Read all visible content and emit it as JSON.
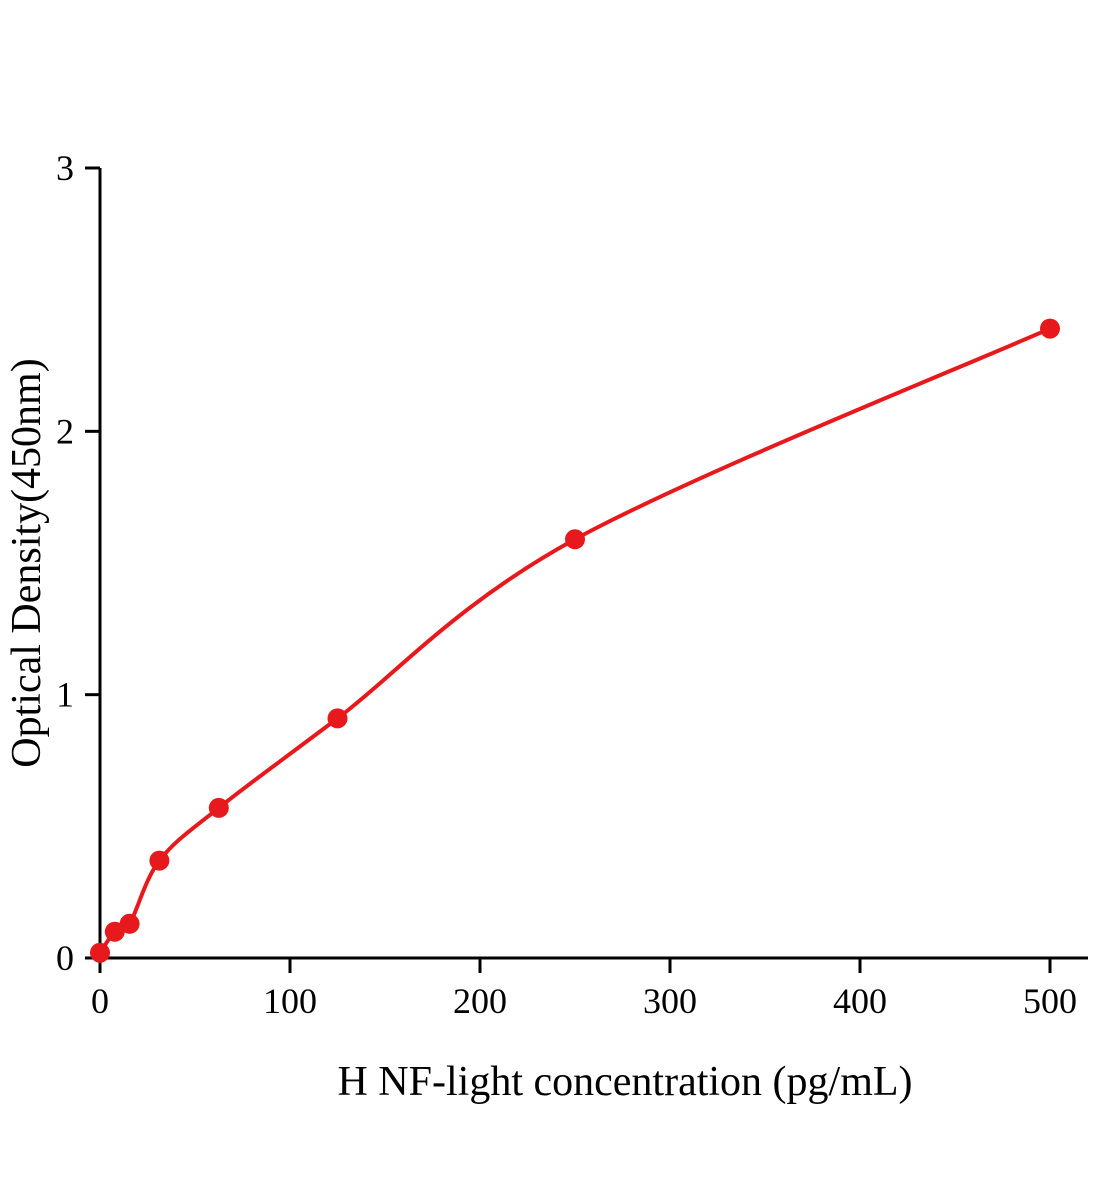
{
  "chart_data": {
    "type": "scatter",
    "title": "",
    "xlabel": "H NF-light concentration (pg/mL)",
    "ylabel": "Optical Density(450nm)",
    "x": [
      0,
      7.8,
      15.6,
      31.25,
      62.5,
      125,
      250,
      500
    ],
    "y": [
      0.02,
      0.1,
      0.13,
      0.37,
      0.57,
      0.91,
      1.59,
      2.39
    ],
    "xlim": [
      0,
      520
    ],
    "ylim": [
      0,
      3
    ],
    "xticks": [
      0,
      100,
      200,
      300,
      400,
      500
    ],
    "yticks": [
      0,
      1,
      2,
      3
    ],
    "curve": "smooth-through-points",
    "point_color": "#e8191d",
    "line_color": "#e8191d",
    "axis_color": "#000000",
    "grid": false,
    "legend": false
  }
}
